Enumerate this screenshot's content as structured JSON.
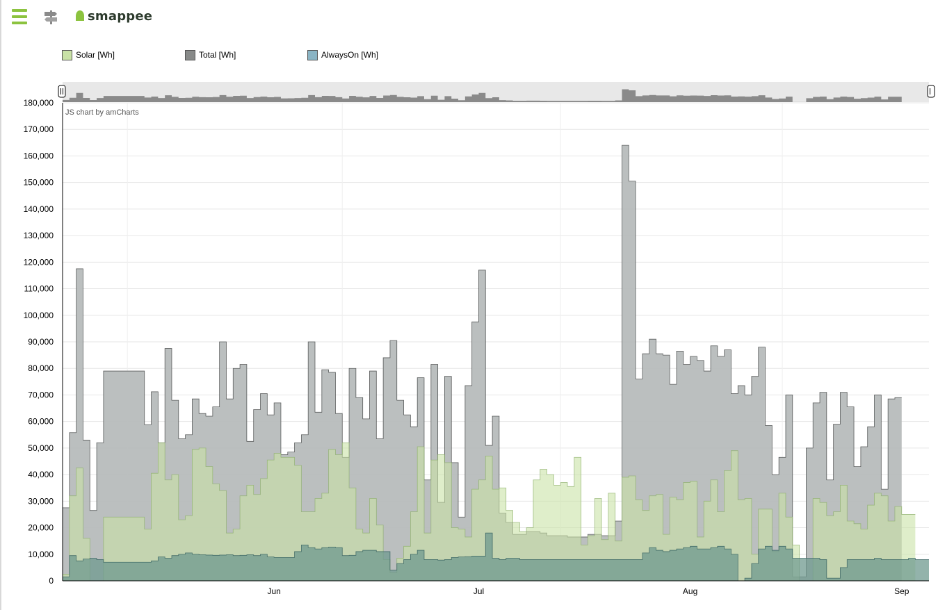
{
  "header": {
    "logo_text": "smappee",
    "menu_icon": "hamburger-icon",
    "secondary_icon": "signpost-icon",
    "accent": "#8cc33f"
  },
  "legend": [
    {
      "label": "Solar [Wh]",
      "color": "#c9e2a6"
    },
    {
      "label": "Total [Wh]",
      "color": "#888a89"
    },
    {
      "label": "AlwaysOn [Wh]",
      "color": "#8ab4c4"
    }
  ],
  "chart_data": {
    "type": "area",
    "credit": "JS chart by amCharts",
    "ylim": [
      0,
      180000
    ],
    "yticks": [
      0,
      10000,
      20000,
      30000,
      40000,
      50000,
      60000,
      70000,
      80000,
      90000,
      100000,
      110000,
      120000,
      130000,
      140000,
      150000,
      160000,
      170000,
      180000
    ],
    "ytick_labels": [
      "0",
      "10,000",
      "20,000",
      "30,000",
      "40,000",
      "50,000",
      "60,000",
      "70,000",
      "80,000",
      "90,000",
      "100,000",
      "110,000",
      "120,000",
      "130,000",
      "140,000",
      "150,000",
      "160,000",
      "170,000",
      "180,000"
    ],
    "x_labels": [
      "Jun",
      "Jul",
      "Aug",
      "Sep"
    ],
    "x_label_positions": [
      31,
      61,
      92,
      123
    ],
    "x_range": [
      0,
      127
    ],
    "step": "steps, one per day",
    "series": [
      {
        "name": "Total [Wh]",
        "color": "#b7bcbc",
        "stroke": "#3b3d3d",
        "values": [
          27500,
          55800,
          117500,
          53000,
          26500,
          52000,
          79000,
          79000,
          79000,
          79000,
          79000,
          79000,
          58800,
          71200,
          52000,
          87500,
          68000,
          53500,
          55000,
          68500,
          63000,
          62000,
          65500,
          90000,
          68500,
          80000,
          81500,
          52500,
          64500,
          70500,
          62500,
          67000,
          47500,
          48500,
          52000,
          55000,
          90000,
          63500,
          79500,
          78500,
          63000,
          46500,
          80000,
          69000,
          61000,
          79000,
          53500,
          84000,
          90500,
          68000,
          62500,
          58000,
          76500,
          38000,
          81500,
          29500,
          77000,
          44500,
          24000,
          73500,
          97500,
          117000,
          51000,
          62000,
          25500,
          22000,
          17500,
          17500,
          18500,
          18500,
          18000,
          17000,
          17000,
          17000,
          16500,
          16500,
          16500,
          17500,
          17500,
          17000,
          17000,
          22500,
          164000,
          150500,
          76000,
          85500,
          91000,
          85500,
          85000,
          74000,
          86500,
          81500,
          84500,
          83000,
          79000,
          88500,
          84500,
          87000,
          70500,
          73500,
          70000,
          77000,
          88000,
          58500,
          40000,
          46500,
          70000,
          1500,
          1500,
          50000,
          67000,
          71000,
          38000,
          59000,
          71000,
          65500,
          43000,
          50500,
          58000,
          70000,
          34500,
          68500,
          69000
        ]
      },
      {
        "name": "Solar [Wh]",
        "color": "#c9e2a6",
        "stroke": "#8fb06d",
        "values": [
          2500,
          32000,
          42500,
          16000,
          0,
          0,
          24000,
          24000,
          24000,
          24000,
          24000,
          24000,
          19500,
          40500,
          52000,
          38000,
          40000,
          23000,
          24500,
          49500,
          50000,
          43000,
          36500,
          34000,
          18000,
          19500,
          32000,
          36000,
          32500,
          38500,
          45500,
          48000,
          46500,
          46500,
          43500,
          26000,
          26000,
          31000,
          33000,
          49500,
          47500,
          52000,
          35000,
          19500,
          18000,
          31000,
          21000,
          8000,
          3000,
          8500,
          13000,
          26000,
          50500,
          18000,
          45500,
          47500,
          44500,
          20000,
          19500,
          16500,
          34500,
          38000,
          47000,
          34500,
          35000,
          26500,
          22000,
          18500,
          20000,
          38000,
          42000,
          40000,
          36000,
          37000,
          35500,
          46500,
          13500,
          17000,
          31000,
          15500,
          33000,
          15000,
          39000,
          39500,
          30500,
          26500,
          32000,
          32500,
          17500,
          31500,
          30500,
          37000,
          37500,
          16500,
          30000,
          38000,
          26000,
          41500,
          49000,
          30500,
          31000,
          10000,
          27000,
          27000,
          11000,
          33000,
          24000,
          13500,
          0,
          0,
          31000,
          29500,
          24500,
          26000,
          36000,
          22500,
          21500,
          19500,
          28500,
          33000,
          32000,
          22500,
          28000,
          25000,
          25000
        ]
      },
      {
        "name": "AlwaysOn [Wh]",
        "color": "#6f9a8f",
        "stroke": "#2f5b5b",
        "values": [
          1500,
          9500,
          7500,
          8200,
          8500,
          8000,
          7000,
          7000,
          7000,
          7000,
          7000,
          7000,
          7000,
          7500,
          9000,
          8500,
          9500,
          10000,
          10500,
          10000,
          9800,
          9700,
          9600,
          9700,
          9800,
          9500,
          9600,
          9800,
          9500,
          10000,
          9000,
          8800,
          8800,
          8800,
          11000,
          13500,
          12500,
          12000,
          12500,
          12700,
          12500,
          9500,
          9600,
          11000,
          11500,
          11500,
          11000,
          11000,
          4000,
          6500,
          8000,
          10000,
          11500,
          8000,
          8000,
          7800,
          8000,
          8800,
          9000,
          9100,
          9300,
          9300,
          18000,
          8500,
          8000,
          8500,
          8500,
          8000,
          8000,
          8000,
          8000,
          8000,
          8000,
          8000,
          8000,
          8000,
          8000,
          8000,
          8000,
          8000,
          8000,
          8000,
          8000,
          8000,
          8000,
          10500,
          12500,
          11500,
          11000,
          11500,
          12000,
          12500,
          13000,
          12000,
          12000,
          12500,
          13000,
          12000,
          10000,
          0,
          1000,
          6500,
          12000,
          13000,
          11500,
          13000,
          12000,
          8500,
          8500,
          8500,
          8500,
          8000,
          1000,
          1000,
          5000,
          8000,
          8000,
          8000,
          8000,
          8500,
          8000,
          8000,
          8000,
          8000,
          8500,
          8000,
          8000
        ]
      }
    ]
  }
}
